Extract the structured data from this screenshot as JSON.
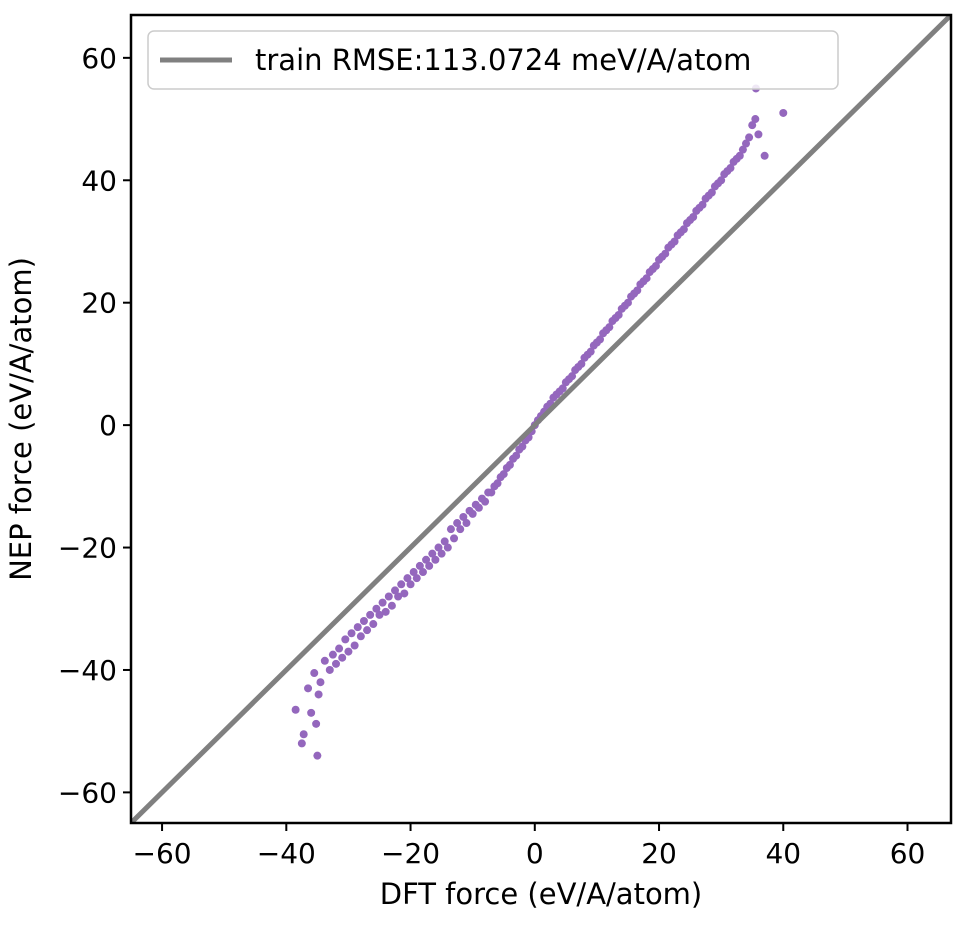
{
  "chart_data": {
    "type": "scatter",
    "title": "",
    "xlabel": "DFT force (eV/A/atom)",
    "ylabel": "NEP force (eV/A/atom)",
    "xlim": [
      -65,
      67
    ],
    "ylim": [
      -65,
      67
    ],
    "xticks": [
      -60,
      -40,
      -20,
      0,
      20,
      40,
      60
    ],
    "yticks": [
      -60,
      -40,
      -20,
      0,
      20,
      40,
      60
    ],
    "xtick_labels": [
      "−60",
      "−40",
      "−20",
      "0",
      "20",
      "40",
      "60"
    ],
    "ytick_labels": [
      "−60",
      "−40",
      "−20",
      "0",
      "20",
      "40",
      "60"
    ],
    "grid": false,
    "legend_position": "top-left",
    "legend": [
      {
        "label": "train RMSE:113.0724 meV/A/atom",
        "color": "#808080",
        "type": "line"
      }
    ],
    "reference_line": {
      "x": [
        -65,
        67
      ],
      "y": [
        -65,
        67
      ],
      "color": "#808080"
    },
    "point_color": "#9467bd",
    "series": [
      {
        "color": "#9467bd",
        "points": [
          [
            -38.5,
            -46.5
          ],
          [
            -37.5,
            -52.0
          ],
          [
            -37.2,
            -50.5
          ],
          [
            -36.0,
            -47.0
          ],
          [
            -35.0,
            -54.0
          ],
          [
            -35.2,
            -48.8
          ],
          [
            -34.8,
            -44.0
          ],
          [
            -36.5,
            -43.0
          ],
          [
            -35.5,
            -40.5
          ],
          [
            -34.5,
            -42.0
          ],
          [
            -33.8,
            -38.5
          ],
          [
            -33.0,
            -40.0
          ],
          [
            -32.5,
            -37.5
          ],
          [
            -32.0,
            -39.0
          ],
          [
            -31.5,
            -36.5
          ],
          [
            -31.0,
            -38.0
          ],
          [
            -30.5,
            -35.0
          ],
          [
            -30.0,
            -37.0
          ],
          [
            -29.5,
            -34.0
          ],
          [
            -29.0,
            -36.0
          ],
          [
            -28.5,
            -33.0
          ],
          [
            -28.0,
            -34.5
          ],
          [
            -27.5,
            -32.0
          ],
          [
            -27.0,
            -33.5
          ],
          [
            -26.5,
            -31.0
          ],
          [
            -26.0,
            -32.5
          ],
          [
            -25.5,
            -30.0
          ],
          [
            -25.0,
            -31.0
          ],
          [
            -24.5,
            -29.0
          ],
          [
            -24.0,
            -30.5
          ],
          [
            -23.5,
            -28.0
          ],
          [
            -23.0,
            -29.5
          ],
          [
            -22.5,
            -27.0
          ],
          [
            -22.0,
            -28.0
          ],
          [
            -21.5,
            -26.0
          ],
          [
            -21.0,
            -27.5
          ],
          [
            -20.5,
            -25.0
          ],
          [
            -20.0,
            -26.0
          ],
          [
            -19.5,
            -24.0
          ],
          [
            -19.0,
            -25.0
          ],
          [
            -18.5,
            -23.0
          ],
          [
            -18.0,
            -24.0
          ],
          [
            -17.5,
            -22.0
          ],
          [
            -17.0,
            -23.0
          ],
          [
            -16.5,
            -21.0
          ],
          [
            -16.0,
            -22.0
          ],
          [
            -15.5,
            -20.0
          ],
          [
            -15.0,
            -21.0
          ],
          [
            -14.5,
            -19.0
          ],
          [
            -14.0,
            -20.0
          ],
          [
            -13.5,
            -17.0
          ],
          [
            -13.0,
            -18.5
          ],
          [
            -12.5,
            -16.0
          ],
          [
            -12.0,
            -17.0
          ],
          [
            -11.5,
            -15.0
          ],
          [
            -11.0,
            -16.0
          ],
          [
            -10.5,
            -14.0
          ],
          [
            -10.0,
            -14.5
          ],
          [
            -9.5,
            -13.0
          ],
          [
            -9.0,
            -13.5
          ],
          [
            -8.5,
            -12.0
          ],
          [
            -8.0,
            -12.5
          ],
          [
            -7.5,
            -11.0
          ],
          [
            -7.0,
            -11.0
          ],
          [
            -6.5,
            -10.0
          ],
          [
            -6.0,
            -9.5
          ],
          [
            -5.5,
            -8.5
          ],
          [
            -5.0,
            -8.0
          ],
          [
            -4.5,
            -7.0
          ],
          [
            -4.0,
            -6.5
          ],
          [
            -3.5,
            -5.5
          ],
          [
            -3.0,
            -5.0
          ],
          [
            -2.5,
            -4.0
          ],
          [
            -2.0,
            -3.5
          ],
          [
            -1.5,
            -2.5
          ],
          [
            -1.0,
            -2.0
          ],
          [
            -0.5,
            -1.0
          ],
          [
            0.0,
            0.0
          ],
          [
            0.5,
            0.8
          ],
          [
            1.0,
            1.5
          ],
          [
            1.5,
            2.2
          ],
          [
            2.0,
            3.0
          ],
          [
            2.5,
            3.5
          ],
          [
            3.0,
            4.5
          ],
          [
            3.5,
            5.0
          ],
          [
            4.0,
            5.5
          ],
          [
            4.5,
            6.0
          ],
          [
            5.0,
            7.0
          ],
          [
            5.5,
            7.5
          ],
          [
            6.0,
            8.0
          ],
          [
            6.5,
            9.0
          ],
          [
            7.0,
            9.5
          ],
          [
            7.5,
            10.0
          ],
          [
            8.0,
            11.0
          ],
          [
            8.5,
            11.5
          ],
          [
            9.0,
            12.0
          ],
          [
            9.5,
            13.0
          ],
          [
            10.0,
            13.5
          ],
          [
            10.5,
            14.0
          ],
          [
            11.0,
            15.0
          ],
          [
            11.5,
            15.5
          ],
          [
            12.0,
            16.0
          ],
          [
            12.5,
            17.0
          ],
          [
            13.0,
            17.5
          ],
          [
            13.5,
            18.0
          ],
          [
            14.0,
            19.0
          ],
          [
            14.5,
            19.5
          ],
          [
            15.0,
            20.0
          ],
          [
            15.5,
            21.0
          ],
          [
            16.0,
            21.5
          ],
          [
            16.5,
            22.0
          ],
          [
            17.0,
            23.0
          ],
          [
            17.5,
            23.5
          ],
          [
            18.0,
            24.0
          ],
          [
            18.5,
            25.0
          ],
          [
            19.0,
            25.5
          ],
          [
            19.5,
            26.0
          ],
          [
            20.0,
            27.0
          ],
          [
            20.5,
            27.5
          ],
          [
            21.0,
            28.0
          ],
          [
            21.5,
            29.0
          ],
          [
            22.0,
            29.5
          ],
          [
            22.5,
            30.0
          ],
          [
            23.0,
            31.0
          ],
          [
            23.5,
            31.5
          ],
          [
            24.0,
            32.0
          ],
          [
            24.5,
            33.0
          ],
          [
            25.0,
            33.5
          ],
          [
            25.5,
            34.0
          ],
          [
            26.0,
            35.0
          ],
          [
            26.5,
            35.5
          ],
          [
            27.0,
            36.0
          ],
          [
            27.5,
            37.0
          ],
          [
            28.0,
            37.5
          ],
          [
            28.5,
            38.0
          ],
          [
            29.0,
            39.0
          ],
          [
            29.5,
            39.5
          ],
          [
            30.0,
            40.0
          ],
          [
            30.5,
            41.0
          ],
          [
            31.0,
            41.5
          ],
          [
            31.5,
            42.0
          ],
          [
            32.0,
            43.0
          ],
          [
            32.5,
            43.5
          ],
          [
            33.0,
            44.0
          ],
          [
            33.5,
            45.0
          ],
          [
            34.0,
            46.0
          ],
          [
            34.5,
            47.0
          ],
          [
            35.0,
            49.0
          ],
          [
            35.5,
            50.0
          ],
          [
            36.0,
            47.5
          ],
          [
            35.6,
            55.0
          ],
          [
            40.0,
            51.0
          ],
          [
            37.0,
            44.0
          ]
        ]
      }
    ]
  }
}
